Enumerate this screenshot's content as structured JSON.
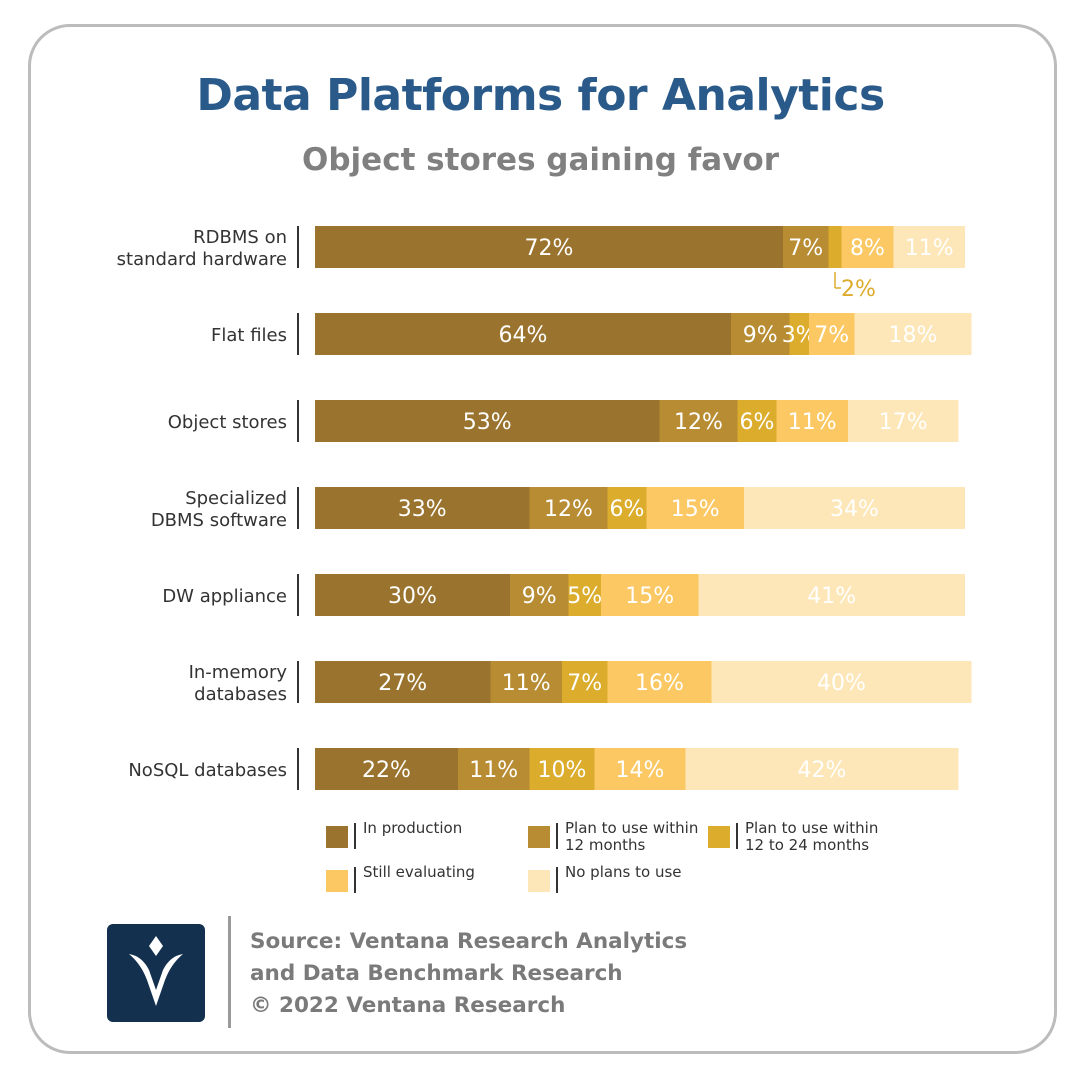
{
  "chart_data": {
    "type": "bar",
    "orientation": "horizontal",
    "stacked": true,
    "normalized": true,
    "title": "Data Platforms for Analytics",
    "subtitle": "Object stores gaining favor",
    "categories": [
      "RDBMS on\nstandard hardware",
      "Flat files",
      "Object stores",
      "Specialized\nDBMS software",
      "DW appliance",
      "In-memory\ndatabases",
      "NoSQL databases"
    ],
    "series": [
      {
        "name": "In production",
        "color": "#9a742e",
        "values": [
          72,
          64,
          53,
          33,
          30,
          27,
          22
        ]
      },
      {
        "name": "Plan to use within\n12 months",
        "color": "#b88c33",
        "values": [
          7,
          9,
          12,
          12,
          9,
          11,
          11
        ]
      },
      {
        "name": "Plan to use within\n12 to 24 months",
        "color": "#dcac2c",
        "values": [
          2,
          3,
          6,
          6,
          5,
          7,
          10
        ]
      },
      {
        "name": "Still evaluating",
        "color": "#fbc864",
        "values": [
          8,
          7,
          11,
          15,
          15,
          16,
          14
        ]
      },
      {
        "name": "No plans to use",
        "color": "#fde7b8",
        "values": [
          11,
          18,
          17,
          34,
          41,
          40,
          42
        ]
      }
    ],
    "data_labels": [
      [
        "72%",
        "7%",
        "2%",
        "8%",
        "11%"
      ],
      [
        "64%",
        "9%",
        "3%",
        "7%",
        "18%"
      ],
      [
        "53%",
        "12%",
        "6%",
        "11%",
        "17%"
      ],
      [
        "33%",
        "12%",
        "6%",
        "15%",
        "34%"
      ],
      [
        "30%",
        "9%",
        "5%",
        "15%",
        "41%"
      ],
      [
        "27%",
        "11%",
        "7%",
        "16%",
        "40%"
      ],
      [
        "22%",
        "11%",
        "10%",
        "14%",
        "42%"
      ]
    ],
    "callout_label_color": "#dcac2c",
    "legend": "bottom",
    "grid": false
  },
  "source": {
    "line1": "Source: Ventana Research Analytics",
    "line2": "and Data Benchmark Research",
    "line3": "© 2022 Ventana Research"
  },
  "logo": {
    "icon": "ventana-v-logo-icon"
  }
}
